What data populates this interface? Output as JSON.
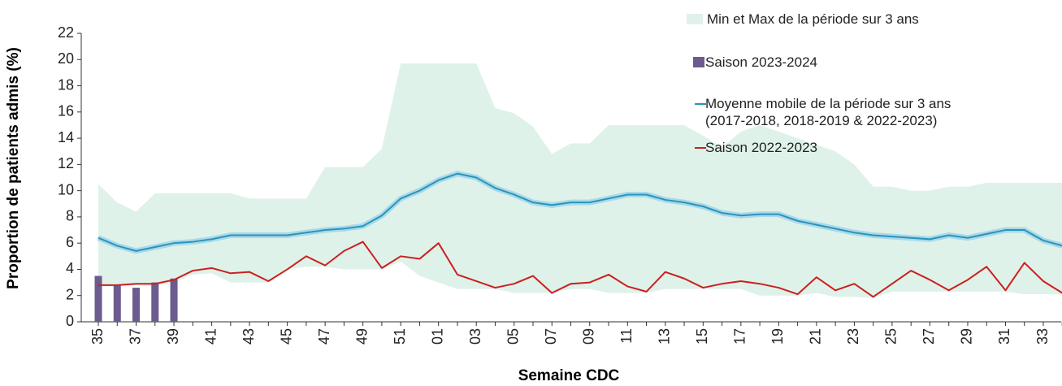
{
  "chart_data": {
    "type": "line",
    "categories": [
      "35",
      null,
      "37",
      null,
      "39",
      null,
      "41",
      null,
      "43",
      null,
      "45",
      null,
      "47",
      null,
      "49",
      null,
      "51",
      null,
      "01",
      null,
      "03",
      null,
      "05",
      null,
      "07",
      null,
      "09",
      null,
      "11",
      null,
      "13",
      null,
      "15",
      null,
      "17",
      null,
      "19",
      null,
      "21",
      null,
      "23",
      null,
      "25",
      null,
      "27",
      null,
      "29",
      null,
      "31",
      null,
      "33",
      null
    ],
    "x_label": "Semaine CDC",
    "y_label": "Proportion de patients admis (%)",
    "ylim": [
      0,
      22
    ],
    "yticks": [
      0,
      2,
      4,
      6,
      8,
      10,
      12,
      14,
      16,
      18,
      20,
      22
    ],
    "series": [
      {
        "name": "Min et Max de la période sur 3 ans",
        "type": "area",
        "color": "#dff2e9",
        "high": [
          10.5,
          9.1,
          8.4,
          9.8,
          9.8,
          9.8,
          9.8,
          9.8,
          9.4,
          9.4,
          9.4,
          9.4,
          11.8,
          11.8,
          11.8,
          13.2,
          19.7,
          19.7,
          19.7,
          19.7,
          19.7,
          16.3,
          15.9,
          14.9,
          12.8,
          13.6,
          13.6,
          15.0,
          15.0,
          15.0,
          15.0,
          15.0,
          14.2,
          13.3,
          14.5,
          15.0,
          14.5,
          14.0,
          13.5,
          13.0,
          12.0,
          10.3,
          10.3,
          10.0,
          10.0,
          10.3,
          10.3,
          10.6,
          10.6,
          10.6,
          10.6,
          10.6
        ],
        "low": [
          2.7,
          2.7,
          2.8,
          2.7,
          3.0,
          3.6,
          3.7,
          3.0,
          3.0,
          3.0,
          4.0,
          4.2,
          4.2,
          4.0,
          4.0,
          4.0,
          4.6,
          3.5,
          3.0,
          2.5,
          2.5,
          2.5,
          2.2,
          2.2,
          2.2,
          2.5,
          2.5,
          2.2,
          2.2,
          2.2,
          2.5,
          2.5,
          2.5,
          2.5,
          2.5,
          2.0,
          2.0,
          2.0,
          2.2,
          1.9,
          1.9,
          1.8,
          2.3,
          2.3,
          2.3,
          2.3,
          2.3,
          2.3,
          2.3,
          2.1,
          2.1,
          2.1
        ]
      },
      {
        "name": "Saison 2023-2024",
        "type": "bar",
        "color": "#6b5b8e",
        "values": [
          3.5,
          2.8,
          2.6,
          3.0,
          3.3,
          null,
          null,
          null,
          null,
          null,
          null,
          null,
          null,
          null,
          null,
          null,
          null,
          null,
          null,
          null,
          null,
          null,
          null,
          null,
          null,
          null,
          null,
          null,
          null,
          null,
          null,
          null,
          null,
          null,
          null,
          null,
          null,
          null,
          null,
          null,
          null,
          null,
          null,
          null,
          null,
          null,
          null,
          null,
          null,
          null,
          null,
          null
        ]
      },
      {
        "name": "Moyenne mobile de la période sur 3 ans\n(2017-2018, 2018-2019 & 2022-2023)",
        "type": "line",
        "color": "#2a94b8",
        "values": [
          6.4,
          5.8,
          5.4,
          5.7,
          6.0,
          6.1,
          6.3,
          6.6,
          6.6,
          6.6,
          6.6,
          6.8,
          7.0,
          7.1,
          7.3,
          8.1,
          9.4,
          10.0,
          10.8,
          11.3,
          11.0,
          10.2,
          9.7,
          9.1,
          8.9,
          9.1,
          9.1,
          9.4,
          9.7,
          9.7,
          9.3,
          9.1,
          8.8,
          8.3,
          8.1,
          8.2,
          8.2,
          7.7,
          7.4,
          7.1,
          6.8,
          6.6,
          6.5,
          6.4,
          6.3,
          6.6,
          6.4,
          6.7,
          7.0,
          7.0,
          6.2,
          5.8
        ]
      },
      {
        "name": "Saison 2022-2023",
        "type": "line",
        "color": "#cc1f1f",
        "values": [
          2.8,
          2.8,
          2.9,
          2.9,
          3.2,
          3.9,
          4.1,
          3.7,
          3.8,
          3.1,
          4.0,
          5.0,
          4.3,
          5.4,
          6.1,
          4.1,
          5.0,
          4.8,
          6.0,
          3.6,
          3.1,
          2.6,
          2.9,
          3.5,
          2.2,
          2.9,
          3.0,
          3.6,
          2.7,
          2.3,
          3.8,
          3.3,
          2.6,
          2.9,
          3.1,
          2.9,
          2.6,
          2.1,
          3.4,
          2.4,
          2.9,
          1.9,
          2.9,
          3.9,
          3.2,
          2.4,
          3.2,
          4.2,
          2.4,
          4.5,
          3.1,
          2.2
        ]
      }
    ]
  }
}
